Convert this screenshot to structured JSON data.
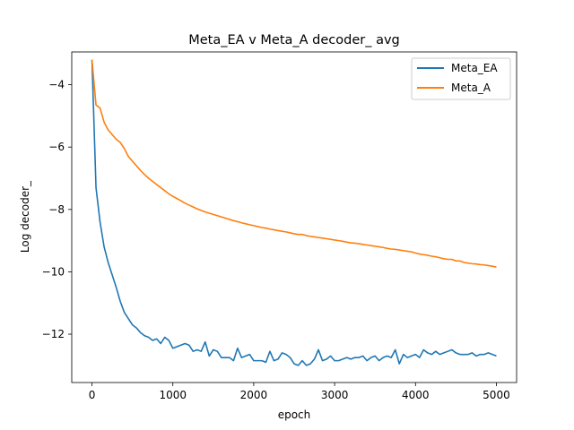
{
  "chart_data": {
    "type": "line",
    "title": "Meta_EA v Meta_A decoder_ avg",
    "xlabel": "epoch",
    "ylabel": "Log decoder_",
    "xlim": [
      -250,
      5250
    ],
    "ylim": [
      -13.55,
      -2.95
    ],
    "xticks": [
      0,
      1000,
      2000,
      3000,
      4000,
      5000
    ],
    "yticks": [
      -12,
      -10,
      -8,
      -6,
      -4
    ],
    "grid": false,
    "legend_position": "top-right",
    "series": [
      {
        "name": "Meta_EA",
        "color": "#1f77b4",
        "x": [
          0,
          50,
          100,
          150,
          200,
          250,
          300,
          350,
          400,
          450,
          500,
          550,
          600,
          650,
          700,
          750,
          800,
          850,
          900,
          950,
          1000,
          1050,
          1100,
          1150,
          1200,
          1250,
          1300,
          1350,
          1400,
          1450,
          1500,
          1550,
          1600,
          1650,
          1700,
          1750,
          1800,
          1850,
          1900,
          1950,
          2000,
          2050,
          2100,
          2150,
          2200,
          2250,
          2300,
          2350,
          2400,
          2450,
          2500,
          2550,
          2600,
          2650,
          2700,
          2750,
          2800,
          2850,
          2900,
          2950,
          3000,
          3050,
          3100,
          3150,
          3200,
          3250,
          3300,
          3350,
          3400,
          3450,
          3500,
          3550,
          3600,
          3650,
          3700,
          3750,
          3800,
          3850,
          3900,
          3950,
          4000,
          4050,
          4100,
          4150,
          4200,
          4250,
          4300,
          4350,
          4400,
          4450,
          4500,
          4550,
          4600,
          4650,
          4700,
          4750,
          4800,
          4850,
          4900,
          4950,
          5000
        ],
        "y": [
          -3.2,
          -7.3,
          -8.4,
          -9.2,
          -9.7,
          -10.1,
          -10.5,
          -10.95,
          -11.3,
          -11.5,
          -11.7,
          -11.8,
          -11.95,
          -12.05,
          -12.1,
          -12.2,
          -12.15,
          -12.3,
          -12.1,
          -12.2,
          -12.45,
          -12.4,
          -12.35,
          -12.3,
          -12.35,
          -12.55,
          -12.5,
          -12.55,
          -12.25,
          -12.7,
          -12.5,
          -12.55,
          -12.75,
          -12.75,
          -12.75,
          -12.85,
          -12.45,
          -12.75,
          -12.7,
          -12.65,
          -12.85,
          -12.85,
          -12.85,
          -12.9,
          -12.55,
          -12.85,
          -12.8,
          -12.6,
          -12.65,
          -12.75,
          -12.95,
          -13.0,
          -12.85,
          -13.0,
          -12.95,
          -12.8,
          -12.5,
          -12.85,
          -12.8,
          -12.7,
          -12.85,
          -12.85,
          -12.8,
          -12.75,
          -12.8,
          -12.75,
          -12.75,
          -12.7,
          -12.85,
          -12.75,
          -12.7,
          -12.85,
          -12.75,
          -12.7,
          -12.75,
          -12.5,
          -12.95,
          -12.65,
          -12.75,
          -12.7,
          -12.65,
          -12.75,
          -12.5,
          -12.6,
          -12.65,
          -12.55,
          -12.65,
          -12.6,
          -12.55,
          -12.5,
          -12.6,
          -12.65,
          -12.65,
          -12.65,
          -12.6,
          -12.7,
          -12.65,
          -12.65,
          -12.6,
          -12.65,
          -12.7
        ]
      },
      {
        "name": "Meta_A",
        "color": "#ff7f0e",
        "x": [
          0,
          50,
          100,
          150,
          200,
          250,
          300,
          350,
          400,
          450,
          500,
          550,
          600,
          650,
          700,
          750,
          800,
          850,
          900,
          950,
          1000,
          1050,
          1100,
          1150,
          1200,
          1250,
          1300,
          1350,
          1400,
          1450,
          1500,
          1550,
          1600,
          1650,
          1700,
          1750,
          1800,
          1850,
          1900,
          1950,
          2000,
          2050,
          2100,
          2150,
          2200,
          2250,
          2300,
          2350,
          2400,
          2450,
          2500,
          2550,
          2600,
          2650,
          2700,
          2750,
          2800,
          2850,
          2900,
          2950,
          3000,
          3050,
          3100,
          3150,
          3200,
          3250,
          3300,
          3350,
          3400,
          3450,
          3500,
          3550,
          3600,
          3650,
          3700,
          3750,
          3800,
          3850,
          3900,
          3950,
          4000,
          4050,
          4100,
          4150,
          4200,
          4250,
          4300,
          4350,
          4400,
          4450,
          4500,
          4550,
          4600,
          4650,
          4700,
          4750,
          4800,
          4850,
          4900,
          4950,
          5000
        ],
        "y": [
          -3.2,
          -4.65,
          -4.75,
          -5.2,
          -5.45,
          -5.6,
          -5.75,
          -5.85,
          -6.05,
          -6.3,
          -6.45,
          -6.6,
          -6.75,
          -6.88,
          -7.0,
          -7.1,
          -7.2,
          -7.3,
          -7.4,
          -7.5,
          -7.58,
          -7.65,
          -7.72,
          -7.8,
          -7.86,
          -7.92,
          -7.98,
          -8.03,
          -8.08,
          -8.12,
          -8.16,
          -8.2,
          -8.24,
          -8.28,
          -8.32,
          -8.36,
          -8.39,
          -8.43,
          -8.46,
          -8.49,
          -8.52,
          -8.55,
          -8.58,
          -8.6,
          -8.63,
          -8.65,
          -8.68,
          -8.7,
          -8.72,
          -8.75,
          -8.78,
          -8.8,
          -8.8,
          -8.84,
          -8.86,
          -8.88,
          -8.9,
          -8.92,
          -8.94,
          -8.96,
          -8.98,
          -9.0,
          -9.02,
          -9.05,
          -9.07,
          -9.08,
          -9.1,
          -9.12,
          -9.14,
          -9.16,
          -9.18,
          -9.2,
          -9.22,
          -9.25,
          -9.27,
          -9.28,
          -9.3,
          -9.32,
          -9.34,
          -9.36,
          -9.4,
          -9.43,
          -9.45,
          -9.47,
          -9.5,
          -9.52,
          -9.55,
          -9.58,
          -9.6,
          -9.6,
          -9.65,
          -9.65,
          -9.7,
          -9.72,
          -9.74,
          -9.75,
          -9.77,
          -9.78,
          -9.8,
          -9.82,
          -9.85
        ]
      }
    ]
  }
}
